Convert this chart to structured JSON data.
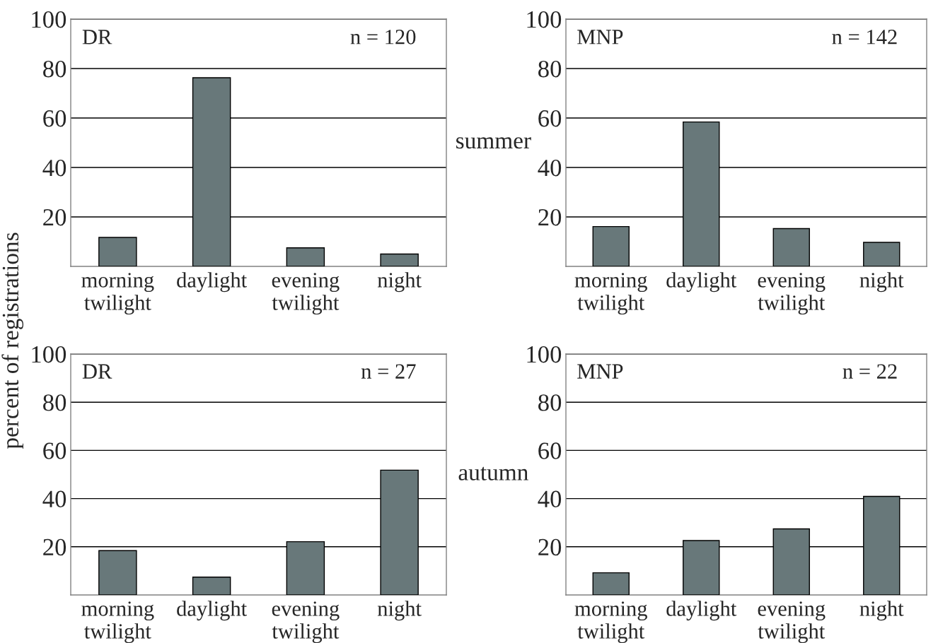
{
  "chart_data": [
    {
      "type": "bar",
      "ylabel": "percent of registrations",
      "categories": [
        "morning\ntwilight",
        "daylight",
        "evening\ntwilight",
        "night"
      ],
      "values": [
        11.7,
        76.3,
        7.5,
        5.0
      ],
      "color": "#68787a",
      "ylim": [
        0,
        100
      ],
      "yticks": [
        20,
        40,
        60,
        80,
        100
      ],
      "grid": "y",
      "annotations": [
        "DR",
        "n = 120",
        "summer"
      ]
    },
    {
      "type": "bar",
      "categories": [
        "morning\ntwilight",
        "daylight",
        "evening\ntwilight",
        "night"
      ],
      "values": [
        16.1,
        58.4,
        15.3,
        9.7
      ],
      "color": "#68787a",
      "ylim": [
        0,
        100
      ],
      "yticks": [
        20,
        40,
        60,
        80,
        100
      ],
      "grid": "y",
      "annotations": [
        "MNP",
        "n = 142"
      ]
    },
    {
      "type": "bar",
      "categories": [
        "morning\ntwilight",
        "daylight",
        "evening\ntwilight",
        "night"
      ],
      "values": [
        18.4,
        7.4,
        22.1,
        51.8
      ],
      "color": "#68787a",
      "ylim": [
        0,
        100
      ],
      "yticks": [
        20,
        40,
        60,
        80,
        100
      ],
      "grid": "y",
      "annotations": [
        "DR",
        "n = 27",
        "autumn"
      ]
    },
    {
      "type": "bar",
      "categories": [
        "morning\ntwilight",
        "daylight",
        "evening\ntwilight",
        "night"
      ],
      "values": [
        9.2,
        22.6,
        27.4,
        40.9
      ],
      "color": "#68787a",
      "ylim": [
        0,
        100
      ],
      "yticks": [
        20,
        40,
        60,
        80,
        100
      ],
      "grid": "y",
      "annotations": [
        "MNP",
        "n = 22"
      ]
    }
  ]
}
